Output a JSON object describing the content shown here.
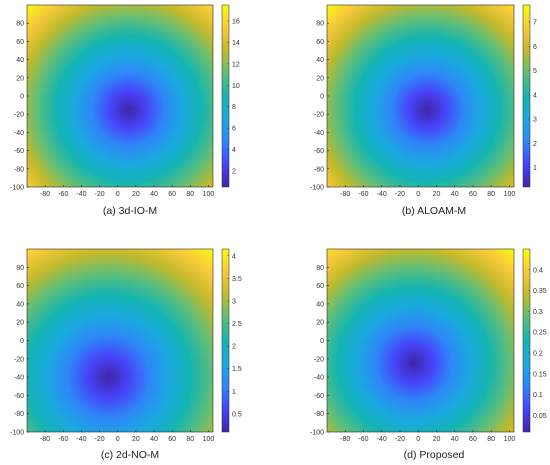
{
  "chart_data": [
    {
      "type": "heatmap",
      "caption": "(a) 3d-IO-M",
      "x_ticks": [
        -80,
        -60,
        -40,
        -20,
        0,
        20,
        40,
        60,
        80,
        100
      ],
      "y_ticks": [
        80,
        60,
        40,
        20,
        0,
        -20,
        -40,
        -60,
        -80,
        -100
      ],
      "xlim": [
        -100,
        105
      ],
      "ylim": [
        -100,
        100
      ],
      "minimum_at": {
        "x": 12,
        "y": -15
      },
      "colorbar": {
        "range": [
          0.5,
          17.5
        ],
        "ticks": [
          "2",
          "4",
          "6",
          "8",
          "10",
          "12",
          "14",
          "16"
        ]
      }
    },
    {
      "type": "heatmap",
      "caption": "(b) ALOAM-M",
      "x_ticks": [
        -80,
        -60,
        -40,
        -20,
        0,
        20,
        40,
        60,
        80,
        100
      ],
      "y_ticks": [
        80,
        60,
        40,
        20,
        0,
        -20,
        -40,
        -60,
        -80,
        -100
      ],
      "xlim": [
        -100,
        105
      ],
      "ylim": [
        -100,
        100
      ],
      "minimum_at": {
        "x": 10,
        "y": -15
      },
      "colorbar": {
        "range": [
          0.2,
          7.7
        ],
        "ticks": [
          "1",
          "2",
          "3",
          "4",
          "5",
          "6",
          "7"
        ]
      }
    },
    {
      "type": "heatmap",
      "caption": "(c) 2d-NO-M",
      "x_ticks": [
        -80,
        -60,
        -40,
        -20,
        0,
        20,
        40,
        60,
        80,
        100
      ],
      "y_ticks": [
        80,
        60,
        40,
        20,
        0,
        -20,
        -40,
        -60,
        -80,
        -100
      ],
      "xlim": [
        -100,
        105
      ],
      "ylim": [
        -100,
        100
      ],
      "minimum_at": {
        "x": -10,
        "y": -40
      },
      "colorbar": {
        "range": [
          0.1,
          4.15
        ],
        "ticks": [
          "0.5",
          "1",
          "1.5",
          "2",
          "2.5",
          "3",
          "3.5",
          "4"
        ]
      }
    },
    {
      "type": "heatmap",
      "caption": "(d) Proposed",
      "x_ticks": [
        -80,
        -60,
        -40,
        -20,
        0,
        20,
        40,
        60,
        80,
        100
      ],
      "y_ticks": [
        80,
        60,
        40,
        20,
        0,
        -20,
        -40,
        -60,
        -80,
        -100
      ],
      "xlim": [
        -100,
        105
      ],
      "ylim": [
        -100,
        100
      ],
      "minimum_at": {
        "x": -5,
        "y": -25
      },
      "colorbar": {
        "range": [
          0.01,
          0.45
        ],
        "ticks": [
          "0.05",
          "0.1",
          "0.15",
          "0.2",
          "0.25",
          "0.3",
          "0.35",
          "0.4"
        ]
      }
    }
  ],
  "colors": {
    "parula": [
      "#3e26a8",
      "#4743f8",
      "#2e87f7",
      "#1aa9df",
      "#15b4b1",
      "#5ebe7a",
      "#c2ba2c",
      "#f8ca3a",
      "#f9fb0e"
    ]
  }
}
